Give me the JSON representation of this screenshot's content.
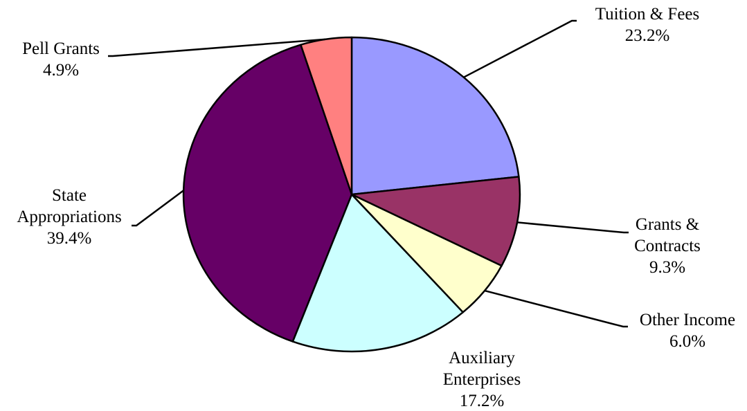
{
  "chart_data": {
    "type": "pie",
    "slices": [
      {
        "label_lines": [
          "Tuition & Fees"
        ],
        "percent_label": "23.2%",
        "value": 23.2,
        "color": "#9999ff"
      },
      {
        "label_lines": [
          "Grants &",
          "Contracts"
        ],
        "percent_label": "9.3%",
        "value": 9.3,
        "color": "#993366"
      },
      {
        "label_lines": [
          "Other Income"
        ],
        "percent_label": "6.0%",
        "value": 6.0,
        "color": "#ffffcc"
      },
      {
        "label_lines": [
          "Auxiliary",
          "Enterprises"
        ],
        "percent_label": "17.2%",
        "value": 17.2,
        "color": "#ccffff"
      },
      {
        "label_lines": [
          "State",
          "Appropriations"
        ],
        "percent_label": "39.4%",
        "value": 39.4,
        "color": "#660066"
      },
      {
        "label_lines": [
          "Pell Grants"
        ],
        "percent_label": "4.9%",
        "value": 4.9,
        "color": "#ff8080"
      }
    ],
    "start_angle_deg": 0,
    "direction": "clockwise",
    "legend": "none",
    "labels": "outside-with-leader-lines"
  }
}
